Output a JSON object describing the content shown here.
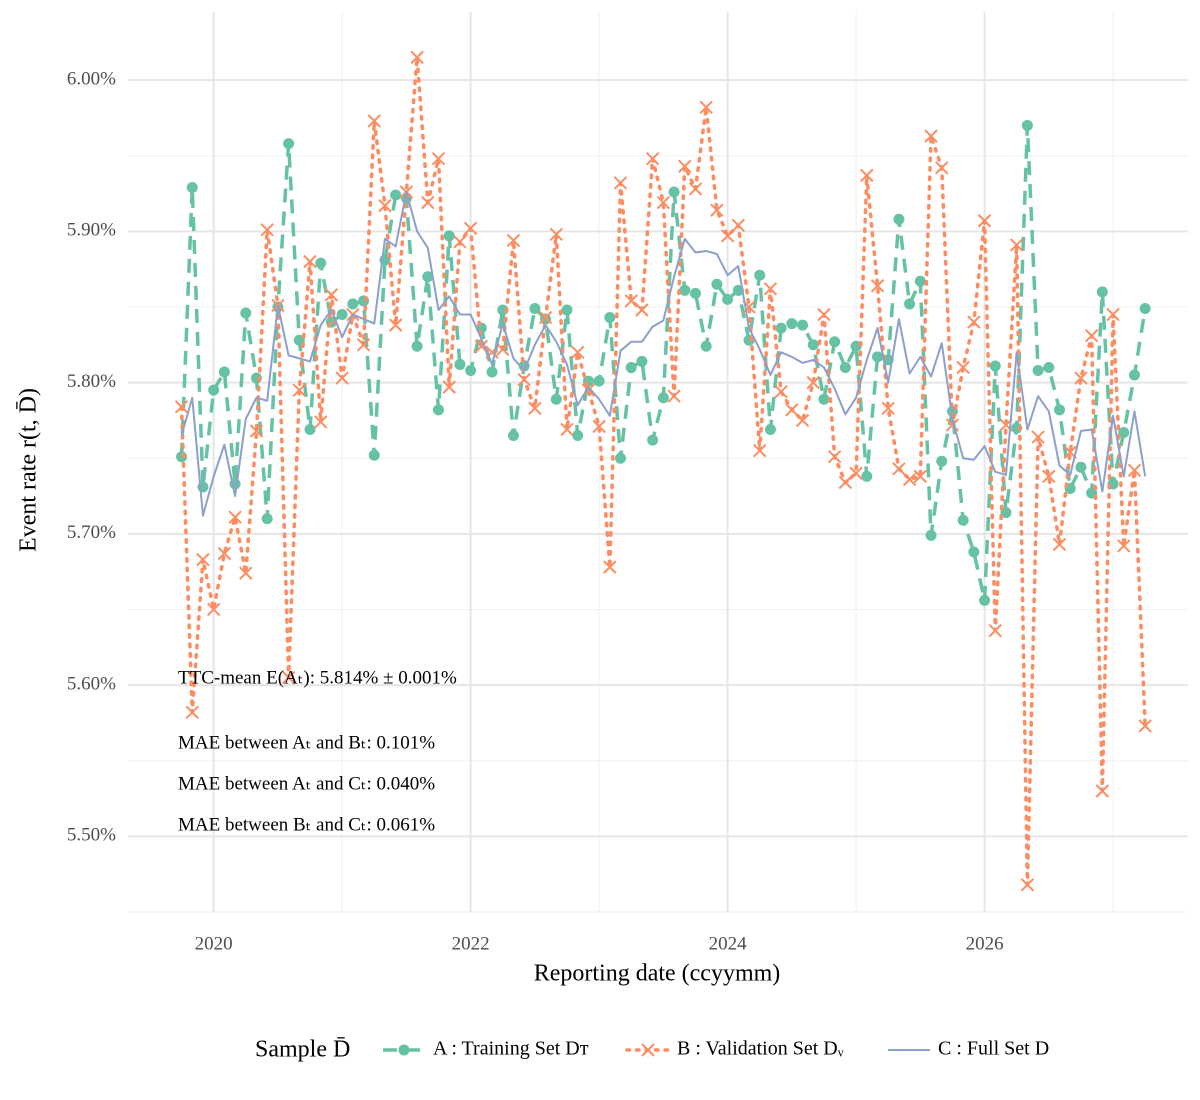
{
  "chart_data": {
    "type": "line",
    "x_label": "Reporting date (ccyymm)",
    "y_label": "Event rate r(t, D̄)",
    "legend_title": "Sample D̄",
    "legend_position": "bottom",
    "grid": true,
    "xlim": [
      "2019-05",
      "2027-08"
    ],
    "xticks": [
      {
        "value": "2020",
        "label": "2020"
      },
      {
        "value": "2022",
        "label": "2022"
      },
      {
        "value": "2024",
        "label": "2024"
      },
      {
        "value": "2026",
        "label": "2026"
      }
    ],
    "xminor": [
      "2021",
      "2023",
      "2025",
      "2027"
    ],
    "ylim": [
      5.45,
      6.045
    ],
    "yticks": [
      {
        "value": 5.5,
        "label": "5.50%"
      },
      {
        "value": 5.6,
        "label": "5.60%"
      },
      {
        "value": 5.7,
        "label": "5.70%"
      },
      {
        "value": 5.8,
        "label": "5.80%"
      },
      {
        "value": 5.9,
        "label": "5.90%"
      },
      {
        "value": 6.0,
        "label": "6.00%"
      }
    ],
    "yminor": [
      5.45,
      5.55,
      5.65,
      5.75,
      5.85,
      5.95
    ],
    "annotations": [
      "TTC-mean E(Aₜ): 5.814% ± 0.001%",
      "MAE between Aₜ and Bₜ: 0.101%",
      "MAE between Aₜ and Cₜ: 0.040%",
      "MAE between Bₜ and Cₜ: 0.061%"
    ],
    "x": [
      "2019-10",
      "2019-11",
      "2019-12",
      "2020-01",
      "2020-02",
      "2020-03",
      "2020-04",
      "2020-05",
      "2020-06",
      "2020-07",
      "2020-08",
      "2020-09",
      "2020-10",
      "2020-11",
      "2020-12",
      "2021-01",
      "2021-02",
      "2021-03",
      "2021-04",
      "2021-05",
      "2021-06",
      "2021-07",
      "2021-08",
      "2021-09",
      "2021-10",
      "2021-11",
      "2021-12",
      "2022-01",
      "2022-02",
      "2022-03",
      "2022-04",
      "2022-05",
      "2022-06",
      "2022-07",
      "2022-08",
      "2022-09",
      "2022-10",
      "2022-11",
      "2022-12",
      "2023-01",
      "2023-02",
      "2023-03",
      "2023-04",
      "2023-05",
      "2023-06",
      "2023-07",
      "2023-08",
      "2023-09",
      "2023-10",
      "2023-11",
      "2023-12",
      "2024-01",
      "2024-02",
      "2024-03",
      "2024-04",
      "2024-05",
      "2024-06",
      "2024-07",
      "2024-08",
      "2024-09",
      "2024-10",
      "2024-11",
      "2024-12",
      "2025-01",
      "2025-02",
      "2025-03",
      "2025-04",
      "2025-05",
      "2025-06",
      "2025-07",
      "2025-08",
      "2025-09",
      "2025-10",
      "2025-11",
      "2025-12",
      "2026-01",
      "2026-02",
      "2026-03",
      "2026-04",
      "2026-05",
      "2026-06",
      "2026-07",
      "2026-08",
      "2026-09",
      "2026-10",
      "2026-11",
      "2026-12",
      "2027-01",
      "2027-02",
      "2027-03",
      "2027-04"
    ],
    "series": [
      {
        "name": "A : Training Set Dᴛ",
        "color": "#66c2a5",
        "dash": "dashed",
        "marker": "circle",
        "values": [
          5.751,
          5.929,
          5.731,
          5.795,
          5.807,
          5.733,
          5.846,
          5.803,
          5.71,
          5.85,
          5.958,
          5.828,
          5.769,
          5.879,
          5.84,
          5.845,
          5.852,
          5.854,
          5.752,
          5.881,
          5.924,
          5.922,
          5.824,
          5.87,
          5.782,
          5.897,
          5.812,
          5.808,
          5.836,
          5.807,
          5.848,
          5.765,
          5.811,
          5.849,
          5.842,
          5.789,
          5.848,
          5.765,
          5.801,
          5.801,
          5.843,
          5.75,
          5.81,
          5.814,
          5.762,
          5.79,
          5.926,
          5.861,
          5.859,
          5.824,
          5.865,
          5.855,
          5.861,
          5.828,
          5.871,
          5.769,
          5.836,
          5.839,
          5.838,
          5.825,
          5.789,
          5.827,
          5.81,
          5.824,
          5.738,
          5.817,
          5.815,
          5.908,
          5.852,
          5.867,
          5.699,
          5.748,
          5.781,
          5.709,
          5.688,
          5.656,
          5.811,
          5.714,
          5.77,
          5.97,
          5.808,
          5.81,
          5.782,
          5.73,
          5.744,
          5.727,
          5.86,
          5.733,
          5.767,
          5.805,
          5.849
        ]
      },
      {
        "name": "B : Validation Set Dᵥ",
        "color": "#fc8d62",
        "dash": "dotted",
        "marker": "x",
        "values": [
          5.784,
          5.582,
          5.683,
          5.65,
          5.687,
          5.711,
          5.674,
          5.768,
          5.901,
          5.851,
          5.605,
          5.795,
          5.88,
          5.774,
          5.858,
          5.803,
          5.845,
          5.825,
          5.973,
          5.917,
          5.838,
          5.926,
          6.015,
          5.919,
          5.948,
          5.797,
          5.893,
          5.902,
          5.824,
          5.82,
          5.822,
          5.894,
          5.802,
          5.783,
          5.843,
          5.898,
          5.769,
          5.82,
          5.795,
          5.771,
          5.678,
          5.932,
          5.854,
          5.848,
          5.948,
          5.919,
          5.791,
          5.943,
          5.928,
          5.982,
          5.914,
          5.897,
          5.904,
          5.85,
          5.755,
          5.862,
          5.794,
          5.782,
          5.775,
          5.8,
          5.845,
          5.751,
          5.734,
          5.74,
          5.937,
          5.864,
          5.783,
          5.743,
          5.736,
          5.738,
          5.963,
          5.942,
          5.772,
          5.81,
          5.84,
          5.907,
          5.636,
          5.772,
          5.891,
          5.468,
          5.764,
          5.738,
          5.693,
          5.754,
          5.803,
          5.831,
          5.53,
          5.845,
          5.692,
          5.742,
          5.573
        ]
      },
      {
        "name": "C : Full Set D",
        "color": "#8da0cb",
        "dash": "solid",
        "marker": "none",
        "values": [
          5.765,
          5.79,
          5.712,
          5.738,
          5.759,
          5.725,
          5.776,
          5.79,
          5.788,
          5.851,
          5.818,
          5.816,
          5.814,
          5.838,
          5.848,
          5.83,
          5.845,
          5.842,
          5.839,
          5.895,
          5.89,
          5.926,
          5.9,
          5.889,
          5.848,
          5.857,
          5.845,
          5.845,
          5.829,
          5.812,
          5.839,
          5.816,
          5.808,
          5.825,
          5.838,
          5.827,
          5.812,
          5.785,
          5.797,
          5.789,
          5.778,
          5.821,
          5.827,
          5.827,
          5.837,
          5.841,
          5.87,
          5.895,
          5.886,
          5.887,
          5.885,
          5.871,
          5.877,
          5.836,
          5.822,
          5.805,
          5.82,
          5.817,
          5.813,
          5.815,
          5.81,
          5.796,
          5.779,
          5.79,
          5.815,
          5.836,
          5.8,
          5.842,
          5.806,
          5.817,
          5.804,
          5.826,
          5.776,
          5.75,
          5.749,
          5.758,
          5.741,
          5.739,
          5.82,
          5.769,
          5.791,
          5.781,
          5.745,
          5.739,
          5.768,
          5.769,
          5.728,
          5.778,
          5.738,
          5.781,
          5.738
        ]
      }
    ]
  }
}
